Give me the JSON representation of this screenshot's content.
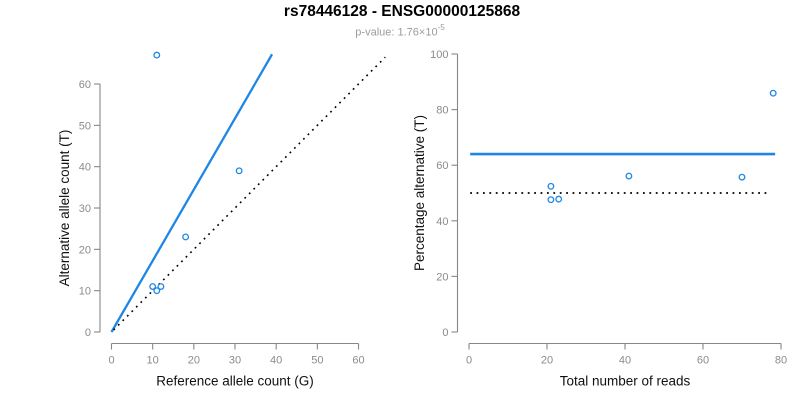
{
  "header": {
    "title": "rs78446128 - ENSG00000125868",
    "subtitle_prefix": "p-value: ",
    "subtitle_mantissa": "1.76×10",
    "subtitle_exponent": "-5"
  },
  "colors": {
    "accent_blue": "#1E87E5",
    "axis_gray": "#878787",
    "tick_label_gray": "#8b8b8b",
    "axis_title_black": "#111111",
    "dotted_black": "#000000"
  },
  "chart_data": [
    {
      "type": "scatter",
      "xlabel": "Reference allele count (G)",
      "ylabel": "Alternative allele count (T)",
      "xlim": [
        0,
        60
      ],
      "ylim": [
        0,
        60
      ],
      "xticks": [
        0,
        10,
        20,
        30,
        40,
        50,
        60
      ],
      "yticks": [
        0,
        10,
        20,
        30,
        40,
        50,
        60
      ],
      "grid": false,
      "points": [
        [
          11,
          67
        ],
        [
          31,
          39
        ],
        [
          18,
          23
        ],
        [
          10,
          11
        ],
        [
          12,
          11
        ],
        [
          11,
          10
        ]
      ],
      "lines": [
        {
          "name": "fitted-ratio-line",
          "style": "solid",
          "color": "#1E87E5",
          "from": [
            0,
            0
          ],
          "to": [
            39,
            67.2
          ]
        },
        {
          "name": "identity-line",
          "style": "dotted",
          "color": "#000000",
          "from": [
            0.5,
            0.5
          ],
          "to": [
            66.5,
            66.5
          ]
        }
      ]
    },
    {
      "type": "scatter",
      "xlabel": "Total number of reads",
      "ylabel": "Percentage alternative (T)",
      "xlim": [
        0,
        80
      ],
      "ylim": [
        0,
        100
      ],
      "xticks": [
        0,
        20,
        40,
        60,
        80
      ],
      "yticks": [
        0,
        20,
        40,
        60,
        80,
        100
      ],
      "grid": false,
      "points": [
        [
          21,
          52.4
        ],
        [
          21,
          47.6
        ],
        [
          23,
          47.8
        ],
        [
          41,
          56.1
        ],
        [
          70,
          55.7
        ],
        [
          78,
          85.9
        ]
      ],
      "lines": [
        {
          "name": "fitted-percentage-line",
          "style": "solid",
          "color": "#1E87E5",
          "from": [
            0.3,
            64
          ],
          "to": [
            78.5,
            64
          ]
        },
        {
          "name": "fifty-percent-line",
          "style": "dotted",
          "color": "#000000",
          "from": [
            0.3,
            50
          ],
          "to": [
            77.2,
            50
          ]
        }
      ]
    }
  ]
}
